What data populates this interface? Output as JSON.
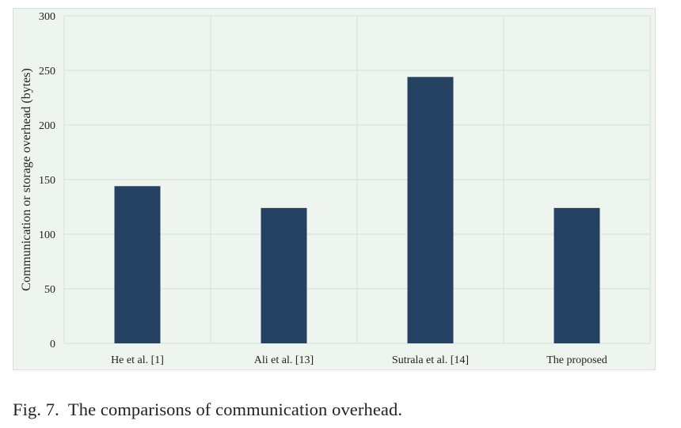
{
  "chart_data": {
    "type": "bar",
    "categories": [
      "He et al. [1]",
      "Ali et al. [13]",
      "Sutrala et al. [14]",
      "The proposed"
    ],
    "values": [
      144,
      124,
      244,
      124
    ],
    "title": "",
    "xlabel": "",
    "ylabel": "Communication or storage overhead (bytes)",
    "ylim": [
      0,
      300
    ],
    "yticks": [
      0,
      50,
      100,
      150,
      200,
      250,
      300
    ],
    "grid": true,
    "legend": "none",
    "bar_color": "#264263",
    "background_color": "#eef5ef",
    "grid_color": "#d6dfd8"
  },
  "caption": {
    "label": "Fig. 7.",
    "text": "The comparisons of communication overhead."
  }
}
